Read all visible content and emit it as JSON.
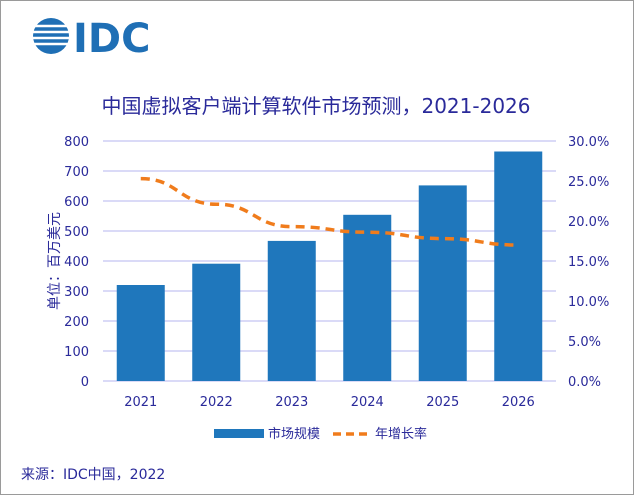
{
  "logo": "IDC",
  "source": "来源：IDC中国，2022",
  "chart_data": {
    "type": "bar+line",
    "title": "中国虚拟客户端计算软件市场预测，2021-2026",
    "ylabel": "单位：百万美元",
    "categories": [
      "2021",
      "2022",
      "2023",
      "2024",
      "2025",
      "2026"
    ],
    "ylim": [
      0,
      800
    ],
    "yticks": [
      "0",
      "100",
      "200",
      "300",
      "400",
      "500",
      "600",
      "700",
      "800"
    ],
    "y2lim": [
      0,
      30
    ],
    "y2ticks": [
      "0.0%",
      "5.0%",
      "10.0%",
      "15.0%",
      "20.0%",
      "25.0%",
      "30.0%"
    ],
    "grid": true,
    "legend_position": "bottom",
    "series": [
      {
        "name": "市场规模",
        "type": "bar",
        "axis": "left",
        "color": "#1f77bc",
        "values": [
          320,
          391,
          467,
          554,
          652,
          765
        ]
      },
      {
        "name": "年增长率",
        "type": "line",
        "axis": "right",
        "style": "dashed",
        "color": "#f07c1c",
        "values": [
          25.3,
          22.1,
          19.3,
          18.6,
          17.8,
          17.0
        ]
      }
    ]
  }
}
